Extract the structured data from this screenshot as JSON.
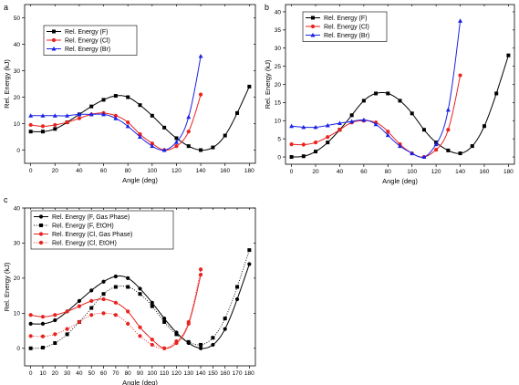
{
  "chart_data": [
    {
      "panel_label": "a",
      "type": "line",
      "xlabel": "Angle (deg)",
      "ylabel": "Rel. Energy (kJ)",
      "xlim": [
        -5,
        185
      ],
      "ylim": [
        -5,
        55
      ],
      "xticks": [
        0,
        20,
        40,
        60,
        80,
        100,
        120,
        140,
        160,
        180
      ],
      "yticks": [
        0,
        10,
        20,
        30,
        40,
        50
      ],
      "legend_position": "top-left",
      "series": [
        {
          "name": "Rel. Energy (F)",
          "color": "#000000",
          "marker": "square",
          "line": "solid",
          "x": [
            0,
            10,
            20,
            30,
            40,
            50,
            60,
            70,
            80,
            90,
            100,
            110,
            120,
            130,
            140,
            150,
            160,
            170,
            180
          ],
          "y": [
            7,
            7,
            8,
            10.5,
            13.5,
            16.5,
            19,
            20.5,
            20,
            17,
            13,
            8.5,
            4.5,
            1.5,
            0,
            1,
            5.5,
            14,
            24
          ]
        },
        {
          "name": "Rel. Energy (Cl)",
          "color": "#e8231f",
          "marker": "circle",
          "line": "solid",
          "x": [
            0,
            10,
            20,
            30,
            40,
            50,
            60,
            70,
            80,
            90,
            100,
            110,
            120,
            130,
            140
          ],
          "y": [
            9.5,
            9,
            9.5,
            10.5,
            12,
            13.5,
            14,
            13,
            10.5,
            6,
            2.5,
            0,
            1.5,
            7,
            21
          ]
        },
        {
          "name": "Rel. Energy (Br)",
          "color": "#1a22e6",
          "marker": "triangle",
          "line": "solid",
          "x": [
            0,
            10,
            20,
            30,
            40,
            50,
            60,
            70,
            80,
            90,
            100,
            110,
            120,
            130,
            140
          ],
          "y": [
            13,
            13,
            13,
            13,
            13.5,
            13.5,
            13.5,
            12,
            9,
            5,
            1.5,
            0,
            3,
            12.5,
            35.5
          ]
        }
      ]
    },
    {
      "panel_label": "b",
      "type": "line",
      "xlabel": "Angle (deg)",
      "ylabel": "Rel. Energy (kJ)",
      "xlim": [
        -5,
        185
      ],
      "ylim": [
        -2,
        42
      ],
      "xticks": [
        0,
        20,
        40,
        60,
        80,
        100,
        120,
        140,
        160,
        180
      ],
      "yticks": [
        0,
        5,
        10,
        15,
        20,
        25,
        30,
        35,
        40
      ],
      "legend_position": "top-left",
      "series": [
        {
          "name": "Rel. Energy (F)",
          "color": "#000000",
          "marker": "square",
          "line": "solid",
          "x": [
            0,
            10,
            20,
            30,
            40,
            50,
            60,
            70,
            80,
            90,
            100,
            110,
            120,
            130,
            140,
            150,
            160,
            170,
            180
          ],
          "y": [
            0,
            0.2,
            1.5,
            4,
            7.5,
            11.5,
            15.5,
            17.5,
            17.5,
            15.5,
            12,
            7.5,
            4,
            1.8,
            1,
            3,
            8.5,
            17.5,
            28
          ]
        },
        {
          "name": "Rel. Energy (Cl)",
          "color": "#e8231f",
          "marker": "circle",
          "line": "solid",
          "x": [
            0,
            10,
            20,
            30,
            40,
            50,
            60,
            70,
            80,
            90,
            100,
            110,
            120,
            130,
            140
          ],
          "y": [
            3.5,
            3.4,
            4,
            5.5,
            7.5,
            9.5,
            10,
            9.5,
            7,
            3.5,
            1,
            0,
            2,
            7.5,
            22.5
          ]
        },
        {
          "name": "Rel. Energy (Br)",
          "color": "#1a22e6",
          "marker": "triangle",
          "line": "solid",
          "x": [
            0,
            10,
            20,
            30,
            40,
            50,
            60,
            70,
            80,
            90,
            100,
            110,
            120,
            130,
            140
          ],
          "y": [
            8.5,
            8.2,
            8.2,
            8.7,
            9.3,
            9.8,
            10.2,
            9,
            6,
            3,
            1,
            0,
            3.5,
            13,
            37.5
          ]
        }
      ]
    },
    {
      "panel_label": "c",
      "type": "line",
      "xlabel": "Angle (deg)",
      "ylabel": "Rel. Energy (kJ)",
      "xlim": [
        -5,
        185
      ],
      "ylim": [
        -5,
        40
      ],
      "xticks": [
        0,
        10,
        20,
        30,
        40,
        50,
        60,
        70,
        80,
        90,
        100,
        110,
        120,
        130,
        140,
        150,
        160,
        170,
        180
      ],
      "yticks": [
        0,
        10,
        20,
        30,
        40
      ],
      "legend_position": "top-left",
      "series": [
        {
          "name": "Rel. Energy (F, Gas Phase)",
          "color": "#000000",
          "marker": "circle",
          "line": "solid",
          "x": [
            0,
            10,
            20,
            30,
            40,
            50,
            60,
            70,
            80,
            90,
            100,
            110,
            120,
            130,
            140,
            150,
            160,
            170,
            180
          ],
          "y": [
            7,
            7,
            8,
            10.5,
            13.5,
            16.5,
            19,
            20.5,
            20,
            17,
            13,
            8.5,
            4.5,
            1.5,
            0,
            1,
            5.5,
            14,
            24
          ]
        },
        {
          "name": "Rel. Energy (F, EtOH)",
          "color": "#000000",
          "marker": "square",
          "line": "dotted",
          "x": [
            0,
            10,
            20,
            30,
            40,
            50,
            60,
            70,
            80,
            90,
            100,
            110,
            120,
            130,
            140,
            150,
            160,
            170,
            180
          ],
          "y": [
            0,
            0.2,
            1.5,
            4,
            7.5,
            11.5,
            15.5,
            17.5,
            17.5,
            15.5,
            12,
            7.5,
            4,
            1.8,
            1,
            3,
            8.5,
            17.5,
            28
          ]
        },
        {
          "name": "Rel. Energy (Cl, Gas Phase)",
          "color": "#e8231f",
          "marker": "circle",
          "line": "solid",
          "x": [
            0,
            10,
            20,
            30,
            40,
            50,
            60,
            70,
            80,
            90,
            100,
            110,
            120,
            130,
            140
          ],
          "y": [
            9.5,
            9,
            9.5,
            10.5,
            12,
            13.5,
            14,
            13,
            10.5,
            6,
            2.5,
            0,
            1.5,
            7,
            21
          ]
        },
        {
          "name": "Rel. Energy (Cl, EtOH)",
          "color": "#e8231f",
          "marker": "circle",
          "line": "dotted",
          "x": [
            0,
            10,
            20,
            30,
            40,
            50,
            60,
            70,
            80,
            90,
            100,
            110,
            120,
            130,
            140
          ],
          "y": [
            3.5,
            3.4,
            4,
            5.5,
            7.5,
            9.5,
            10,
            9.5,
            7,
            3.5,
            1,
            0,
            2,
            7.5,
            22.5
          ]
        }
      ]
    }
  ]
}
